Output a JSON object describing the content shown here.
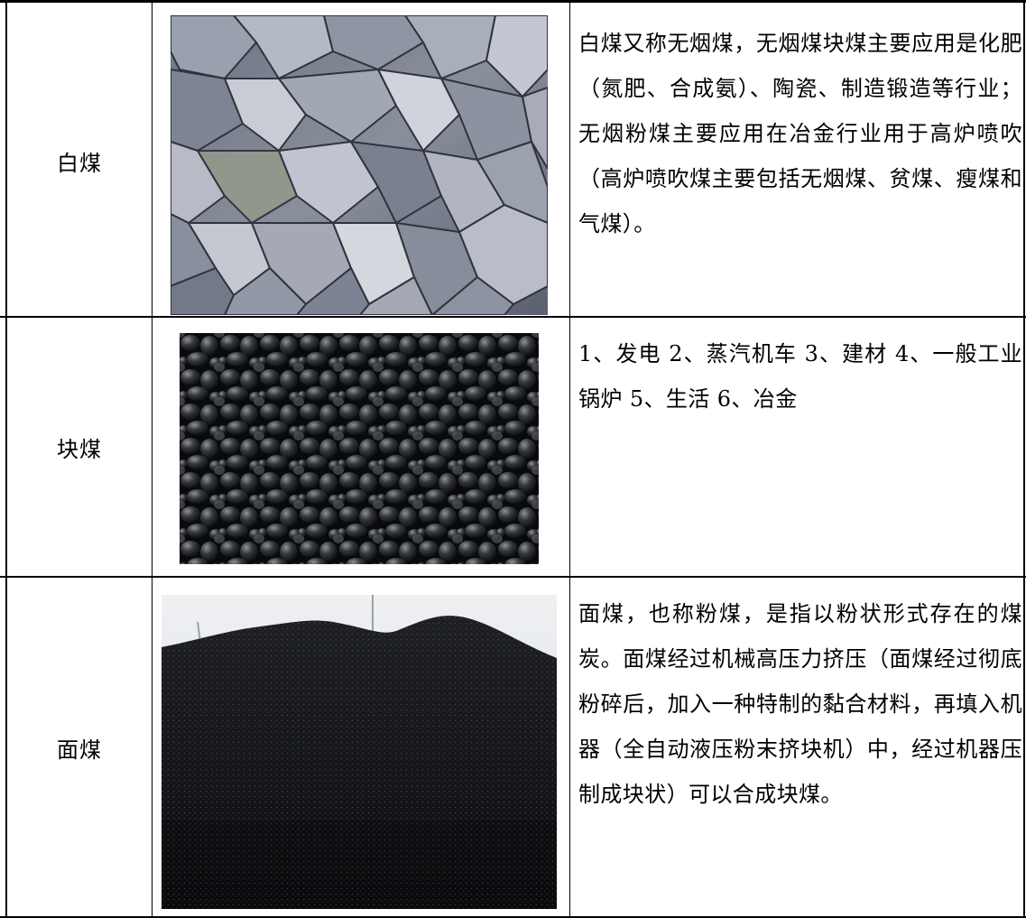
{
  "rows": [
    {
      "name": "白煤",
      "image_subject": "anthracite-lumps-photo",
      "description": "白煤又称无烟煤，无烟煤块煤主要应用是化肥（氮肥、合成氨）、陶瓷、制造锻造等行业；无烟粉煤主要应用在冶金行业用于高炉喷吹（高炉喷吹煤主要包括无烟煤、贫煤、瘦煤和气煤）。"
    },
    {
      "name": "块煤",
      "image_subject": "lump-coal-photo",
      "description": "1、发电 2、蒸汽机车 3、建材 4、一般工业锅炉 5、生活 6、冶金"
    },
    {
      "name": "面煤",
      "image_subject": "powdered-coal-pile-photo",
      "description": "面煤，也称粉煤，是指以粉状形式存在的煤炭。面煤经过机械高压力挤压（面煤经过彻底粉碎后，加入一种特制的黏合材料，再填入机器（全自动液压粉末挤块机）中，经过机器压制成块状）可以合成块煤。"
    }
  ],
  "colors": {
    "border": "#000000",
    "background": "#ffffff"
  }
}
